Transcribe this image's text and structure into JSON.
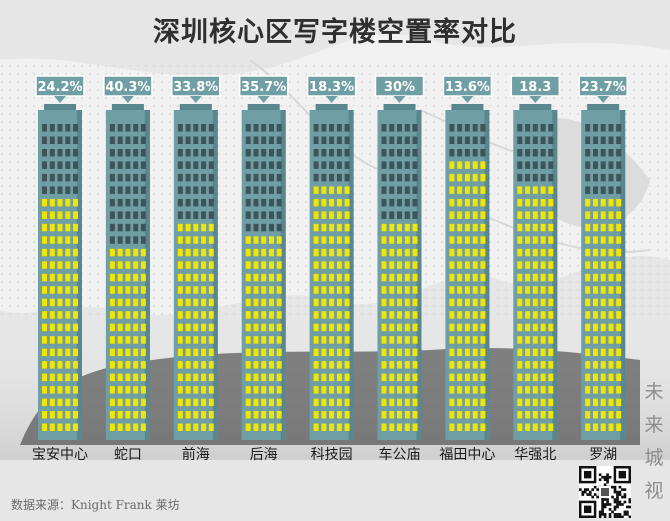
{
  "title": "深圳核心区写字楼空置率对比",
  "source": "数据来源：Knight Frank 莱坊",
  "watermark": [
    "未",
    "来",
    "城",
    "视"
  ],
  "colors": {
    "tower_body": "#6f9ea4",
    "tower_side": "#5a878d",
    "window_dark": "#3e5459",
    "window_lit": "#f2e600",
    "label_bg": "#6f9ea4",
    "label_text": "#ffffff",
    "category_text": "#1a1a1a"
  },
  "chart_data": {
    "type": "bar",
    "title": "深圳核心区写字楼空置率对比",
    "categories": [
      "宝安中心",
      "蛇口",
      "前海",
      "后海",
      "科技园",
      "车公庙",
      "福田中心",
      "华强北",
      "罗湖"
    ],
    "values": [
      24.2,
      40.3,
      33.8,
      35.7,
      18.3,
      30,
      13.6,
      18.3,
      23.7
    ],
    "value_labels": [
      "24.2%",
      "40.3%",
      "33.8%",
      "35.7%",
      "18.3%",
      "30%",
      "13.6%",
      "18.3",
      "23.7%"
    ],
    "xlabel": "",
    "ylabel": "",
    "legend": "none",
    "grid": false
  }
}
